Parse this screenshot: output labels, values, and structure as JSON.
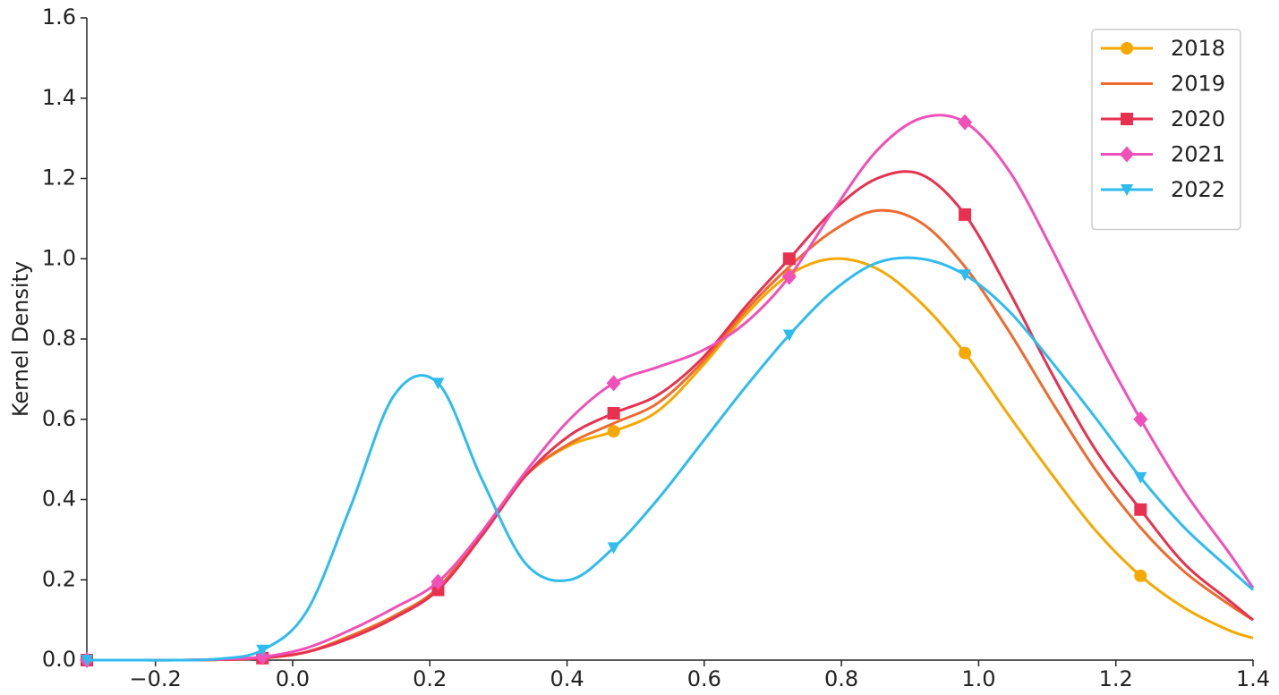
{
  "chart_data": {
    "type": "line",
    "ylabel": "Kernel Density",
    "x": [
      -0.3,
      -0.236,
      -0.172,
      -0.108,
      -0.044,
      0.02,
      0.084,
      0.148,
      0.212,
      0.276,
      0.34,
      0.404,
      0.468,
      0.532,
      0.596,
      0.66,
      0.724,
      0.788,
      0.852,
      0.916,
      0.98,
      1.044,
      1.108,
      1.172,
      1.236,
      1.3,
      1.364,
      1.4
    ],
    "marker_every": 4,
    "series": [
      {
        "name": "2018",
        "color": "#f5a800",
        "marker": "circle",
        "values": [
          0,
          0,
          0,
          0.001,
          0.005,
          0.02,
          0.06,
          0.11,
          0.18,
          0.32,
          0.46,
          0.535,
          0.57,
          0.62,
          0.73,
          0.86,
          0.96,
          1.0,
          0.975,
          0.89,
          0.765,
          0.61,
          0.46,
          0.32,
          0.21,
          0.13,
          0.075,
          0.055
        ]
      },
      {
        "name": "2019",
        "color": "#ee6a2f",
        "values": [
          0,
          0,
          0,
          0.001,
          0.005,
          0.02,
          0.06,
          0.11,
          0.18,
          0.32,
          0.46,
          0.54,
          0.59,
          0.64,
          0.74,
          0.87,
          0.98,
          1.07,
          1.12,
          1.09,
          0.98,
          0.82,
          0.64,
          0.47,
          0.33,
          0.22,
          0.14,
          0.1
        ]
      },
      {
        "name": "2020",
        "color": "#e8304f",
        "marker": "square",
        "values": [
          0,
          0,
          0,
          0.001,
          0.005,
          0.02,
          0.055,
          0.105,
          0.175,
          0.31,
          0.46,
          0.56,
          0.615,
          0.66,
          0.75,
          0.88,
          1.0,
          1.12,
          1.2,
          1.21,
          1.11,
          0.92,
          0.71,
          0.52,
          0.375,
          0.24,
          0.15,
          0.1
        ]
      },
      {
        "name": "2021",
        "color": "#f050b8",
        "marker": "diamond",
        "values": [
          0,
          0,
          0,
          0.002,
          0.008,
          0.03,
          0.075,
          0.13,
          0.195,
          0.32,
          0.47,
          0.6,
          0.69,
          0.73,
          0.77,
          0.84,
          0.955,
          1.12,
          1.27,
          1.35,
          1.34,
          1.22,
          1.02,
          0.8,
          0.6,
          0.42,
          0.27,
          0.18
        ]
      },
      {
        "name": "2022",
        "color": "#2ebcee",
        "marker": "triangle-down",
        "values": [
          0,
          0,
          0,
          0.003,
          0.025,
          0.12,
          0.38,
          0.66,
          0.69,
          0.45,
          0.24,
          0.2,
          0.28,
          0.4,
          0.54,
          0.68,
          0.81,
          0.92,
          0.99,
          1.0,
          0.96,
          0.87,
          0.74,
          0.6,
          0.455,
          0.33,
          0.23,
          0.175
        ]
      }
    ],
    "xlim": [
      -0.3,
      1.4
    ],
    "xticks": [
      {
        "value": -0.2,
        "label": "−0.2"
      },
      {
        "value": 0,
        "label": "0.0"
      },
      0.2,
      0.4,
      0.6,
      0.8,
      {
        "value": 1,
        "label": "1.0"
      },
      1.2,
      1.4
    ],
    "ylim": [
      0,
      1.6
    ],
    "yticks": [
      {
        "value": 0,
        "label": "0.0"
      },
      0.2,
      0.4,
      0.6,
      0.8,
      {
        "value": 1,
        "label": "1.0"
      },
      1.2,
      1.4,
      1.6
    ],
    "legend": "upper right"
  }
}
